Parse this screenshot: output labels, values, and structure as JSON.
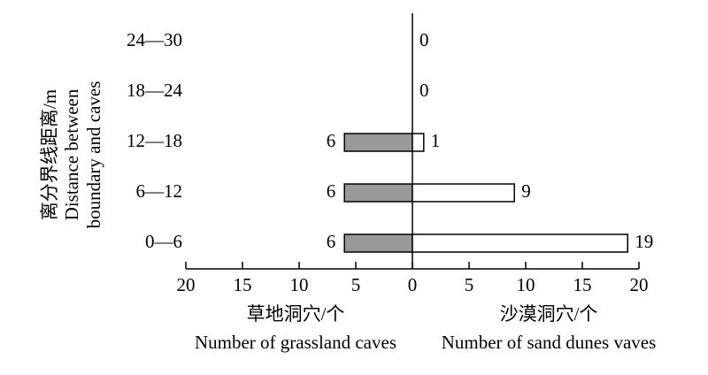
{
  "chart_data": {
    "type": "butterfly-bar",
    "categories": [
      "0—6",
      "6—12",
      "12—18",
      "18—24",
      "24—30"
    ],
    "series": [
      {
        "name": "草地洞穴",
        "side": "left",
        "color": "#999999",
        "values": [
          6,
          6,
          6,
          null,
          null
        ]
      },
      {
        "name": "沙漠洞穴",
        "side": "right",
        "color": "#ffffff",
        "values": [
          19,
          9,
          1,
          0,
          0
        ]
      }
    ],
    "xlim": [
      -20,
      20
    ],
    "xticks": [
      {
        "value": -20,
        "label": "20"
      },
      {
        "value": -15,
        "label": "15"
      },
      {
        "value": -10,
        "label": "10"
      },
      {
        "value": -5,
        "label": "5"
      },
      0,
      5,
      10,
      15,
      20
    ],
    "ylabel": [
      "离分界线距离/m",
      "Distance between",
      "boundary and caves"
    ],
    "xlabel_left": [
      "草地洞穴/个",
      "Number of grassland caves"
    ],
    "xlabel_right": [
      "沙漠洞穴/个",
      "Number of sand dunes vaves"
    ]
  }
}
